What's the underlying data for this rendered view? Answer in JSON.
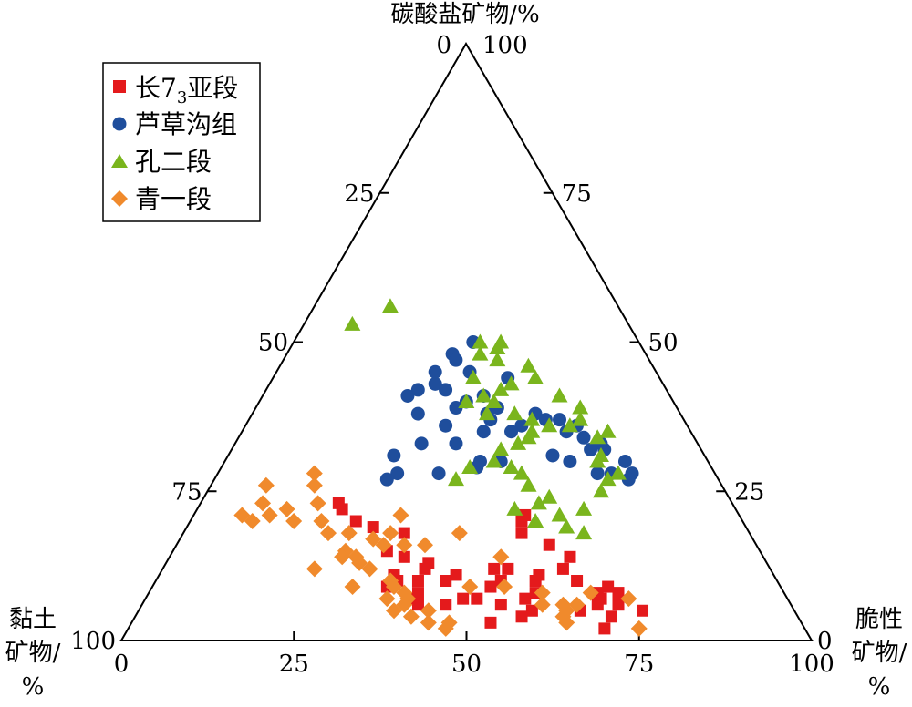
{
  "chart_data": {
    "type": "scatter",
    "subtype": "ternary",
    "axes": {
      "top": {
        "label": "碳酸盐矿物/%",
        "ticks": [
          "0",
          "25",
          "50",
          "75",
          "100"
        ]
      },
      "left": {
        "label_line1": "黏土",
        "label_line2": "矿物/",
        "label_line3": "%",
        "ticks": [
          "0",
          "25",
          "50",
          "75",
          "100"
        ]
      },
      "right": {
        "label_line1": "脆性",
        "label_line2": "矿物/",
        "label_line3": "%",
        "ticks": [
          "0",
          "25",
          "50",
          "75",
          "100"
        ]
      }
    },
    "legend": {
      "placement": "top-left",
      "entries": [
        {
          "name_main": "长7",
          "name_sub": "3",
          "name_tail": "亚段",
          "marker": "square",
          "color": "#e41a1c"
        },
        {
          "name_main": "芦草沟组",
          "marker": "circle",
          "color": "#1f4e9c"
        },
        {
          "name_main": "孔二段",
          "marker": "triangle",
          "color": "#7ab51d"
        },
        {
          "name_main": "青一段",
          "marker": "diamond",
          "color": "#f08a2c"
        }
      ]
    },
    "series": [
      {
        "name": "长73亚段",
        "marker": "square",
        "color": "#e41a1c",
        "points": [
          [
            10,
            52,
            38
          ],
          [
            11,
            55,
            34
          ],
          [
            14,
            52,
            34
          ],
          [
            15,
            54,
            31
          ],
          [
            12,
            50,
            38
          ],
          [
            13,
            49,
            38
          ],
          [
            10,
            48,
            42
          ],
          [
            11,
            46,
            43
          ],
          [
            18,
            50,
            32
          ],
          [
            19,
            54,
            27
          ],
          [
            20,
            56,
            24
          ],
          [
            22,
            57,
            21
          ],
          [
            23,
            57,
            20
          ],
          [
            8,
            53,
            39
          ],
          [
            9,
            57,
            34
          ],
          [
            10,
            55,
            35
          ],
          [
            7,
            55,
            38
          ],
          [
            6,
            54,
            40
          ],
          [
            6,
            50,
            44
          ],
          [
            7,
            45,
            48
          ],
          [
            6,
            42,
            52
          ],
          [
            5,
            38,
            57
          ],
          [
            7,
            38,
            55
          ],
          [
            8,
            36,
            56
          ],
          [
            10,
            35,
            55
          ],
          [
            11,
            34,
            55
          ],
          [
            12,
            40,
            48
          ],
          [
            9,
            42,
            49
          ],
          [
            4,
            40,
            56
          ],
          [
            5,
            31,
            64
          ],
          [
            6,
            28,
            66
          ],
          [
            7,
            27,
            66
          ],
          [
            8,
            24,
            68
          ],
          [
            6,
            25,
            69
          ],
          [
            4,
            27,
            69
          ],
          [
            2,
            29,
            69
          ],
          [
            9,
            25,
            66
          ],
          [
            10,
            29,
            61
          ],
          [
            12,
            30,
            58
          ],
          [
            14,
            28,
            58
          ],
          [
            16,
            30,
            54
          ],
          [
            18,
            33,
            49
          ],
          [
            20,
            32,
            48
          ],
          [
            21,
            31,
            48
          ],
          [
            12,
            38,
            50
          ],
          [
            10,
            40,
            50
          ],
          [
            7,
            47,
            46
          ],
          [
            3,
            45,
            52
          ],
          [
            8,
            27,
            65
          ],
          [
            5,
            22,
            73
          ]
        ]
      },
      {
        "name": "芦草沟组",
        "marker": "circle",
        "color": "#1f4e9c",
        "points": [
          [
            50,
            24,
            26
          ],
          [
            45,
            27,
            28
          ],
          [
            41,
            27,
            32
          ],
          [
            39,
            32,
            29
          ],
          [
            39,
            26,
            35
          ],
          [
            38,
            28,
            34
          ],
          [
            37,
            28,
            35
          ],
          [
            43,
            33,
            24
          ],
          [
            42,
            32,
            26
          ],
          [
            45,
            32,
            23
          ],
          [
            48,
            28,
            24
          ],
          [
            47,
            28,
            25
          ],
          [
            44,
            22,
            34
          ],
          [
            36,
            24,
            40
          ],
          [
            35,
            26,
            39
          ],
          [
            38,
            21,
            41
          ],
          [
            37,
            20,
            43
          ],
          [
            37,
            18,
            45
          ],
          [
            36,
            16,
            48
          ],
          [
            34,
            16,
            50
          ],
          [
            33,
            14,
            53
          ],
          [
            32,
            14,
            54
          ],
          [
            28,
            12,
            60
          ],
          [
            27,
            13,
            60
          ],
          [
            30,
            12,
            58
          ],
          [
            28,
            15,
            57
          ],
          [
            32,
            16,
            52
          ],
          [
            35,
            18,
            47
          ],
          [
            30,
            20,
            50
          ],
          [
            28,
            17,
            55
          ],
          [
            42,
            36,
            22
          ],
          [
            33,
            40,
            27
          ],
          [
            31,
            45,
            24
          ],
          [
            28,
            46,
            26
          ],
          [
            27,
            48,
            25
          ],
          [
            28,
            40,
            32
          ],
          [
            29,
            34,
            37
          ],
          [
            30,
            33,
            37
          ],
          [
            33,
            35,
            32
          ],
          [
            41,
            38,
            21
          ],
          [
            38,
            38,
            24
          ],
          [
            35,
            30,
            35
          ],
          [
            36,
            35,
            29
          ],
          [
            40,
            30,
            30
          ],
          [
            31,
            22,
            47
          ],
          [
            30,
            30,
            40
          ]
        ]
      },
      {
        "name": "孔二段",
        "marker": "triangle",
        "color": "#7ab51d",
        "points": [
          [
            56,
            33,
            11
          ],
          [
            53,
            40,
            7
          ],
          [
            50,
            23,
            27
          ],
          [
            49,
            21,
            30
          ],
          [
            48,
            24,
            28
          ],
          [
            50,
            20,
            30
          ],
          [
            47,
            22,
            31
          ],
          [
            46,
            18,
            36
          ],
          [
            44,
            27,
            29
          ],
          [
            43,
            22,
            35
          ],
          [
            42,
            24,
            34
          ],
          [
            41,
            27,
            32
          ],
          [
            40,
            30,
            30
          ],
          [
            38,
            28,
            34
          ],
          [
            38,
            24,
            38
          ],
          [
            37,
            22,
            41
          ],
          [
            36,
            20,
            44
          ],
          [
            35,
            23,
            42
          ],
          [
            34,
            24,
            42
          ],
          [
            33,
            26,
            41
          ],
          [
            32,
            29,
            39
          ],
          [
            30,
            31,
            39
          ],
          [
            29,
            29,
            42
          ],
          [
            28,
            28,
            44
          ],
          [
            26,
            28,
            46
          ],
          [
            24,
            26,
            50
          ],
          [
            23,
            28,
            49
          ],
          [
            22,
            32,
            46
          ],
          [
            22,
            22,
            56
          ],
          [
            20,
            30,
            50
          ],
          [
            21,
            26,
            53
          ],
          [
            19,
            26,
            55
          ],
          [
            18,
            24,
            58
          ],
          [
            27,
            38,
            35
          ],
          [
            29,
            35,
            36
          ],
          [
            40,
            26,
            34
          ],
          [
            44,
            18,
            38
          ],
          [
            41,
            16,
            43
          ],
          [
            39,
            14,
            47
          ],
          [
            37,
            15,
            48
          ],
          [
            36,
            17,
            47
          ],
          [
            35,
            12,
            53
          ],
          [
            34,
            14,
            52
          ],
          [
            31,
            15,
            54
          ],
          [
            30,
            16,
            54
          ],
          [
            28,
            14,
            58
          ],
          [
            27,
            16,
            57
          ],
          [
            25,
            18,
            57
          ]
        ]
      },
      {
        "name": "青一段",
        "marker": "diamond",
        "color": "#f08a2c",
        "points": [
          [
            28,
            58,
            14
          ],
          [
            26,
            66,
            8
          ],
          [
            26,
            59,
            15
          ],
          [
            23,
            68,
            9
          ],
          [
            23,
            60,
            17
          ],
          [
            22,
            65,
            13
          ],
          [
            21,
            72,
            7
          ],
          [
            21,
            68,
            11
          ],
          [
            20,
            71,
            9
          ],
          [
            20,
            65,
            15
          ],
          [
            20,
            61,
            19
          ],
          [
            18,
            61,
            21
          ],
          [
            18,
            58,
            24
          ],
          [
            18,
            52,
            30
          ],
          [
            17,
            55,
            28
          ],
          [
            16,
            54,
            30
          ],
          [
            16,
            51,
            33
          ],
          [
            16,
            48,
            36
          ],
          [
            15,
            60,
            25
          ],
          [
            14,
            61,
            25
          ],
          [
            14,
            59,
            27
          ],
          [
            13,
            59,
            28
          ],
          [
            12,
            66,
            22
          ],
          [
            12,
            58,
            30
          ],
          [
            10,
            56,
            34
          ],
          [
            9,
            62,
            29
          ],
          [
            9,
            56,
            35
          ],
          [
            8,
            55,
            37
          ],
          [
            7,
            58,
            35
          ],
          [
            7,
            55,
            38
          ],
          [
            6,
            56,
            38
          ],
          [
            5,
            58,
            37
          ],
          [
            5,
            53,
            42
          ],
          [
            4,
            56,
            40
          ],
          [
            3,
            54,
            43
          ],
          [
            3,
            51,
            46
          ],
          [
            2,
            52,
            46
          ],
          [
            21,
            49,
            30
          ],
          [
            18,
            42,
            40
          ],
          [
            14,
            38,
            48
          ],
          [
            9,
            40,
            51
          ],
          [
            8,
            35,
            57
          ],
          [
            6,
            31,
            63
          ],
          [
            6,
            33,
            61
          ],
          [
            6,
            36,
            58
          ],
          [
            5,
            33,
            62
          ],
          [
            4,
            34,
            62
          ],
          [
            3,
            34,
            63
          ],
          [
            7,
            23,
            70
          ],
          [
            2,
            24,
            74
          ],
          [
            8,
            28,
            64
          ],
          [
            9,
            45,
            46
          ]
        ]
      }
    ]
  }
}
